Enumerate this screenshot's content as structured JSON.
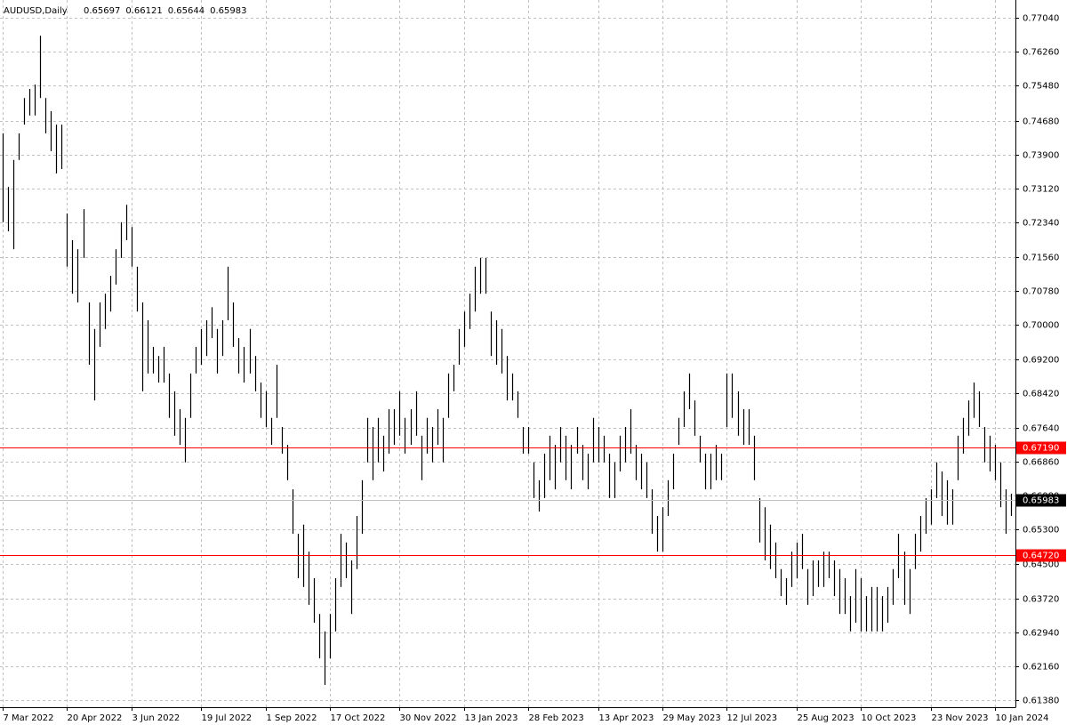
{
  "chart_data": {
    "type": "range_bar",
    "title": "AUDUSD,Daily",
    "last_ohlc": [
      0.65697,
      0.66121,
      0.65644,
      0.65983
    ],
    "color": "#000000",
    "grid": true,
    "xlim": [
      -0.5,
      188.8
    ],
    "ylim": [
      0.6122,
      0.7745
    ],
    "xticks": [
      {
        "value": 0,
        "label": "7 Mar 2022"
      },
      {
        "value": 12,
        "label": "20 Apr 2022"
      },
      {
        "value": 24,
        "label": "3 Jun 2022"
      },
      {
        "value": 37,
        "label": "19 Jul 2022"
      },
      {
        "value": 49,
        "label": "1 Sep 2022"
      },
      {
        "value": 61,
        "label": "17 Oct 2022"
      },
      {
        "value": 74,
        "label": "30 Nov 2022"
      },
      {
        "value": 86,
        "label": "13 Jan 2023"
      },
      {
        "value": 98,
        "label": "28 Feb 2023"
      },
      {
        "value": 111,
        "label": "13 Apr 2023"
      },
      {
        "value": 123,
        "label": "29 May 2023"
      },
      {
        "value": 135,
        "label": "12 Jul 2023"
      },
      {
        "value": 148,
        "label": "25 Aug 2023"
      },
      {
        "value": 160,
        "label": "10 Oct 2023"
      },
      {
        "value": 173,
        "label": "23 Nov 2023"
      },
      {
        "value": 185,
        "label": "10 Jan 2024"
      }
    ],
    "yticks": [
      {
        "value": 0.7704,
        "label": "0.77040"
      },
      {
        "value": 0.7626,
        "label": "0.76260"
      },
      {
        "value": 0.7548,
        "label": "0.75480"
      },
      {
        "value": 0.7468,
        "label": "0.74680"
      },
      {
        "value": 0.739,
        "label": "0.73900"
      },
      {
        "value": 0.7312,
        "label": "0.73120"
      },
      {
        "value": 0.7234,
        "label": "0.72340"
      },
      {
        "value": 0.7156,
        "label": "0.71560"
      },
      {
        "value": 0.7078,
        "label": "0.70780"
      },
      {
        "value": 0.7,
        "label": "0.70000"
      },
      {
        "value": 0.692,
        "label": "0.69200"
      },
      {
        "value": 0.6842,
        "label": "0.68420"
      },
      {
        "value": 0.6764,
        "label": "0.67640"
      },
      {
        "value": 0.6686,
        "label": "0.66860"
      },
      {
        "value": 0.6608,
        "label": "0.66080"
      },
      {
        "value": 0.653,
        "label": "0.65300"
      },
      {
        "value": 0.645,
        "label": "0.64500"
      },
      {
        "value": 0.6372,
        "label": "0.63720"
      },
      {
        "value": 0.6294,
        "label": "0.62940"
      },
      {
        "value": 0.6216,
        "label": "0.62160"
      },
      {
        "value": 0.6138,
        "label": "0.61380"
      }
    ],
    "hlines": [
      {
        "value": 0.6719,
        "label": "0.67190",
        "color": "#ff0000"
      },
      {
        "value": 0.6472,
        "label": "0.64720",
        "color": "#ff0000"
      }
    ],
    "current_price": {
      "value": 0.65983,
      "color": "#c0c0c0"
    },
    "high": [
      0.7439,
      0.7316,
      0.7378,
      0.7439,
      0.752,
      0.7541,
      0.7551,
      0.7663,
      0.752,
      0.749,
      0.7459,
      0.7459,
      0.7255,
      0.7194,
      0.7173,
      0.7265,
      0.7051,
      0.699,
      0.7051,
      0.7071,
      0.7112,
      0.7173,
      0.7235,
      0.7275,
      0.7224,
      0.7133,
      0.7051,
      0.701,
      0.6949,
      0.6928,
      0.6949,
      0.6888,
      0.6847,
      0.6806,
      0.6786,
      0.6888,
      0.6949,
      0.699,
      0.701,
      0.704,
      0.699,
      0.701,
      0.7133,
      0.7051,
      0.6969,
      0.6949,
      0.699,
      0.6928,
      0.6867,
      0.6847,
      0.6786,
      0.6908,
      0.6765,
      0.6724,
      0.6622,
      0.652,
      0.6541,
      0.6479,
      0.6418,
      0.6336,
      0.6296,
      0.6336,
      0.6418,
      0.652,
      0.65,
      0.6459,
      0.6561,
      0.6643,
      0.6786,
      0.6765,
      0.6786,
      0.6745,
      0.6806,
      0.6806,
      0.6847,
      0.6786,
      0.6806,
      0.6847,
      0.6745,
      0.6786,
      0.6765,
      0.6806,
      0.6786,
      0.6888,
      0.6908,
      0.699,
      0.703,
      0.7071,
      0.7133,
      0.7153,
      0.7153,
      0.703,
      0.701,
      0.699,
      0.6928,
      0.6888,
      0.6847,
      0.6765,
      0.6765,
      0.6684,
      0.6643,
      0.6704,
      0.6745,
      0.6724,
      0.6765,
      0.6745,
      0.6724,
      0.6765,
      0.6724,
      0.6704,
      0.6786,
      0.6765,
      0.6745,
      0.6704,
      0.6684,
      0.6745,
      0.6765,
      0.6806,
      0.6724,
      0.6704,
      0.6684,
      0.6622,
      0.6561,
      0.6581,
      0.6643,
      0.6704,
      0.6786,
      0.6847,
      0.6888,
      0.6826,
      0.6745,
      0.6704,
      0.6704,
      0.6724,
      0.6704,
      0.6888,
      0.6888,
      0.6847,
      0.6806,
      0.6806,
      0.6745,
      0.6602,
      0.6581,
      0.6541,
      0.65,
      0.6439,
      0.6418,
      0.6479,
      0.65,
      0.652,
      0.6439,
      0.6459,
      0.6459,
      0.6479,
      0.6479,
      0.6459,
      0.6439,
      0.6418,
      0.6377,
      0.6439,
      0.6418,
      0.6377,
      0.6398,
      0.6398,
      0.6377,
      0.6398,
      0.6439,
      0.652,
      0.6479,
      0.6439,
      0.652,
      0.6561,
      0.6602,
      0.6622,
      0.6684,
      0.6663,
      0.6643,
      0.6622,
      0.6745,
      0.6786,
      0.6826,
      0.6867,
      0.6847,
      0.6765,
      0.6745,
      0.6724,
      0.6684,
      0.6622,
      0.6612
    ],
    "low": [
      0.7235,
      0.7214,
      0.7173,
      0.7378,
      0.7459,
      0.748,
      0.748,
      0.752,
      0.7439,
      0.7398,
      0.7347,
      0.7357,
      0.7133,
      0.7071,
      0.7051,
      0.7153,
      0.6908,
      0.6826,
      0.6949,
      0.699,
      0.703,
      0.7092,
      0.7153,
      0.7194,
      0.7133,
      0.703,
      0.6847,
      0.6888,
      0.6888,
      0.6867,
      0.6867,
      0.6786,
      0.6745,
      0.6724,
      0.6684,
      0.6786,
      0.6888,
      0.6908,
      0.6928,
      0.6969,
      0.6888,
      0.6928,
      0.701,
      0.6949,
      0.6888,
      0.6867,
      0.6888,
      0.6847,
      0.6786,
      0.6765,
      0.6724,
      0.6786,
      0.6704,
      0.6643,
      0.652,
      0.6418,
      0.6398,
      0.6357,
      0.6316,
      0.6234,
      0.6173,
      0.6234,
      0.6296,
      0.6398,
      0.6418,
      0.6336,
      0.6439,
      0.652,
      0.6684,
      0.6643,
      0.6684,
      0.6663,
      0.6704,
      0.6724,
      0.6745,
      0.6704,
      0.6724,
      0.6745,
      0.6643,
      0.6704,
      0.6684,
      0.6724,
      0.6684,
      0.6786,
      0.6847,
      0.6908,
      0.6949,
      0.699,
      0.703,
      0.7071,
      0.7071,
      0.6928,
      0.6908,
      0.6888,
      0.6826,
      0.6826,
      0.6786,
      0.6704,
      0.6704,
      0.6602,
      0.6571,
      0.6602,
      0.6643,
      0.6622,
      0.6684,
      0.6643,
      0.6622,
      0.6704,
      0.6643,
      0.6622,
      0.6684,
      0.6684,
      0.6684,
      0.6602,
      0.6602,
      0.6663,
      0.6684,
      0.6704,
      0.6643,
      0.6622,
      0.6602,
      0.652,
      0.6479,
      0.6479,
      0.6561,
      0.6622,
      0.6724,
      0.6765,
      0.6806,
      0.6745,
      0.6684,
      0.6622,
      0.6622,
      0.6643,
      0.6643,
      0.6765,
      0.6786,
      0.6745,
      0.6724,
      0.6724,
      0.6643,
      0.65,
      0.6459,
      0.6439,
      0.6418,
      0.6377,
      0.6357,
      0.6398,
      0.6418,
      0.6439,
      0.6357,
      0.6377,
      0.6398,
      0.6398,
      0.6418,
      0.6377,
      0.6336,
      0.6336,
      0.6296,
      0.6316,
      0.6296,
      0.6296,
      0.6296,
      0.6296,
      0.6296,
      0.6316,
      0.6357,
      0.6418,
      0.6357,
      0.6336,
      0.6439,
      0.6479,
      0.652,
      0.6541,
      0.6602,
      0.6561,
      0.6541,
      0.6541,
      0.6643,
      0.6704,
      0.6745,
      0.6786,
      0.6765,
      0.6684,
      0.6663,
      0.6643,
      0.6581,
      0.652,
      0.6561
    ]
  }
}
